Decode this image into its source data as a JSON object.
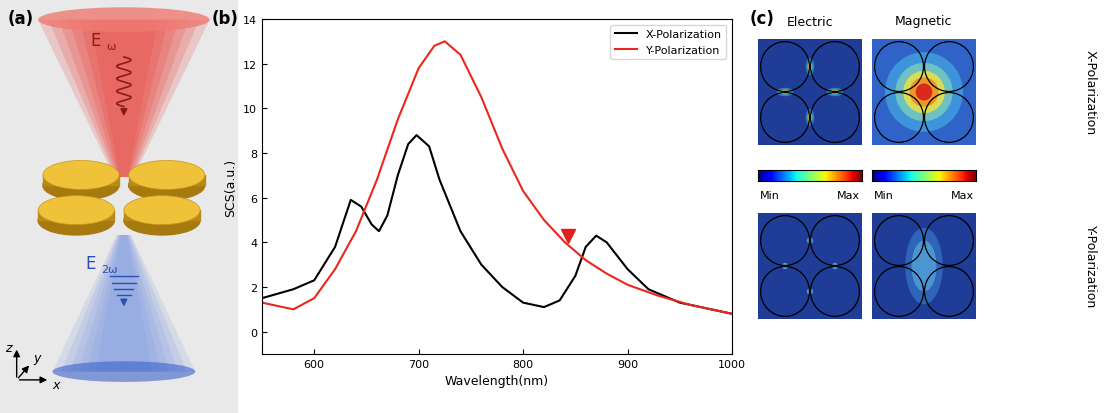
{
  "panel_a": {
    "label": "(a)",
    "incident": {
      "symbol": "E",
      "subscript": "ω"
    },
    "generated": {
      "symbol": "E",
      "subscript": "2ω"
    },
    "axes": [
      "z",
      "y",
      "x"
    ]
  },
  "chart_data": {
    "type": "line",
    "panel_label": "(b)",
    "x_label": "Wavelength(nm)",
    "y_label": "SCS(a.u.)",
    "xlim": [
      550,
      1000
    ],
    "xticks": [
      600,
      700,
      800,
      900,
      1000
    ],
    "ylim": [
      -1,
      14
    ],
    "yticks": [
      0,
      2,
      4,
      6,
      8,
      10,
      12,
      14
    ],
    "legend": "upper right",
    "series": [
      {
        "name": "X-Polarization",
        "color": "#000000",
        "line_style": "solid",
        "x": [
          550,
          580,
          600,
          620,
          635,
          645,
          655,
          662,
          670,
          680,
          690,
          698,
          710,
          720,
          740,
          760,
          780,
          800,
          820,
          835,
          850,
          860,
          870,
          880,
          900,
          920,
          950,
          980,
          1000
        ],
        "values": [
          1.5,
          1.9,
          2.3,
          3.8,
          5.9,
          5.6,
          4.8,
          4.5,
          5.2,
          7.0,
          8.4,
          8.8,
          8.3,
          6.8,
          4.5,
          3.0,
          2.0,
          1.3,
          1.1,
          1.4,
          2.5,
          3.8,
          4.3,
          4.0,
          2.8,
          1.9,
          1.3,
          1.0,
          0.8
        ]
      },
      {
        "name": "Y-Polarization",
        "color": "#e8281e",
        "line_style": "solid",
        "x": [
          550,
          570,
          580,
          600,
          620,
          640,
          660,
          680,
          700,
          715,
          725,
          740,
          760,
          780,
          800,
          820,
          840,
          860,
          880,
          900,
          930,
          960,
          1000
        ],
        "values": [
          1.3,
          1.1,
          1.0,
          1.5,
          2.8,
          4.5,
          6.8,
          9.5,
          11.8,
          12.8,
          13.0,
          12.4,
          10.5,
          8.2,
          6.3,
          5.0,
          4.0,
          3.2,
          2.6,
          2.1,
          1.6,
          1.2,
          0.8
        ]
      }
    ],
    "annotations": [
      {
        "type": "marker",
        "marker": "triangle_down",
        "x": 843,
        "y": 4.3,
        "color": "#e0201b"
      }
    ]
  },
  "panel_c": {
    "label": "(c)",
    "columns": [
      "Electric",
      "Magnetic"
    ],
    "rows": [
      "X-Polarization",
      "Y-Polarization"
    ],
    "colorbar_labels": [
      "Min",
      "Max"
    ]
  }
}
